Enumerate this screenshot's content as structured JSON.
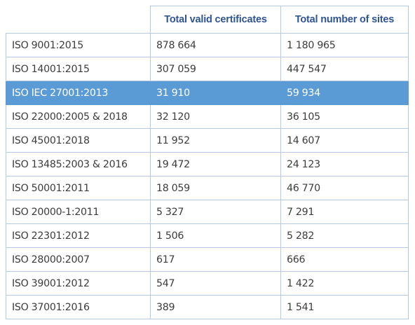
{
  "table": {
    "headers": [
      "",
      "Total valid certificates",
      "Total number of sites"
    ],
    "rows": [
      {
        "standard": "ISO 9001:2015",
        "certificates": "878 664",
        "sites": "1 180 965"
      },
      {
        "standard": "ISO 14001:2015",
        "certificates": "307 059",
        "sites": "447 547"
      },
      {
        "standard": "ISO IEC 27001:2013",
        "certificates": "31 910",
        "sites": "59 934"
      },
      {
        "standard": "ISO 22000:2005 & 2018",
        "certificates": "32 120",
        "sites": "36 105"
      },
      {
        "standard": "ISO 45001:2018",
        "certificates": "11 952",
        "sites": "14 607"
      },
      {
        "standard": "ISO 13485:2003 & 2016",
        "certificates": "19 472",
        "sites": "24 123"
      },
      {
        "standard": "ISO 50001:2011",
        "certificates": "18 059",
        "sites": "46 770"
      },
      {
        "standard": "ISO 20000-1:2011",
        "certificates": "5 327",
        "sites": "7 291"
      },
      {
        "standard": "ISO 22301:2012",
        "certificates": "1 506",
        "sites": "5 282"
      },
      {
        "standard": "ISO 28000:2007",
        "certificates": "617",
        "sites": "666"
      },
      {
        "standard": "ISO 39001:2012",
        "certificates": "547",
        "sites": "1 422"
      },
      {
        "standard": "ISO 37001:2016",
        "certificates": "389",
        "sites": "1 541"
      }
    ]
  },
  "colors": {
    "header_text": "#2f5592",
    "highlight_row": "#5b9bd5",
    "grid": "#b7c9e2"
  }
}
